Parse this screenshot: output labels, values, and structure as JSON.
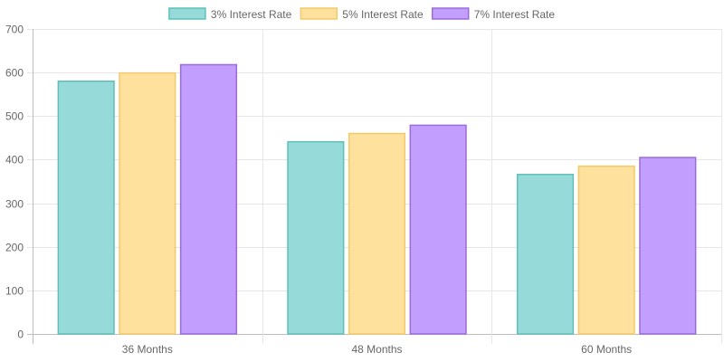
{
  "chart_data": {
    "type": "bar",
    "categories": [
      "36 Months",
      "48 Months",
      "60 Months"
    ],
    "series": [
      {
        "name": "3% Interest Rate",
        "values": [
          580,
          441,
          366
        ],
        "fill": "#96dbd9",
        "stroke": "#5fbfba"
      },
      {
        "name": "5% Interest Rate",
        "values": [
          599,
          460,
          385
        ],
        "fill": "#fde19c",
        "stroke": "#f5c96a"
      },
      {
        "name": "7% Interest Rate",
        "values": [
          618,
          479,
          405
        ],
        "fill": "#c29ffe",
        "stroke": "#9b6bd9"
      }
    ],
    "ylim": [
      0,
      700
    ],
    "yticks": [
      0,
      100,
      200,
      300,
      400,
      500,
      600,
      700
    ],
    "grid": true,
    "legend_position": "top"
  }
}
